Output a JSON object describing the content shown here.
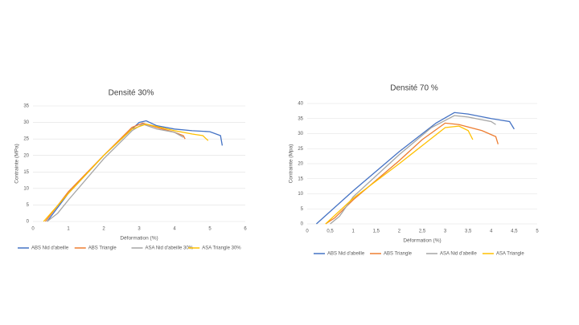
{
  "chart_data": [
    {
      "type": "line",
      "title": "Densité 30%",
      "x_label": "Déformation (%)",
      "y_label": "Contrainte (MPa)",
      "xlim": [
        0,
        6
      ],
      "xticks": [
        0,
        1,
        2,
        3,
        4,
        5,
        6
      ],
      "ylim": [
        0,
        35
      ],
      "yticks": [
        0,
        5,
        10,
        15,
        20,
        25,
        30,
        35
      ],
      "grid": true,
      "series": [
        {
          "name": "ABS Nid d'abeille",
          "color": "#4472c4",
          "x": [
            0.4,
            1,
            2,
            3,
            3.2,
            3.5,
            4,
            4.5,
            5,
            5.3,
            5.35
          ],
          "values": [
            0,
            8.5,
            20,
            30,
            30.5,
            29,
            28,
            27.5,
            27.2,
            26,
            23
          ]
        },
        {
          "name": "ABS Triangle",
          "color": "#ed7d31",
          "x": [
            0.35,
            1,
            2,
            2.8,
            3.1,
            3.5,
            4,
            4.25,
            4.3
          ],
          "values": [
            0,
            9,
            20,
            28.5,
            29.8,
            28.5,
            27,
            26,
            25
          ]
        },
        {
          "name": "ASA Nid d'abeille 30%",
          "color": "#a5a5a5",
          "x": [
            0.4,
            0.7,
            1,
            2,
            2.8,
            3.1,
            3.5,
            4,
            4.25
          ],
          "values": [
            0,
            2.5,
            6.5,
            19,
            27.5,
            29.5,
            28,
            27,
            25.5
          ]
        },
        {
          "name": "ASA Triangle 30%",
          "color": "#ffc000",
          "x": [
            0.3,
            1,
            2,
            2.8,
            3.2,
            3.6,
            4,
            4.5,
            4.8,
            4.95
          ],
          "values": [
            0,
            8.5,
            20,
            28,
            29.5,
            28.5,
            27.5,
            26.5,
            26,
            24.5
          ]
        }
      ]
    },
    {
      "type": "line",
      "title": "Densité 70 %",
      "x_label": "Déformation (%)",
      "y_label": "Contrainte (Mpa)",
      "xlim": [
        0,
        5
      ],
      "xticks": [
        0,
        {
          "value": 0.5,
          "label": "0,5"
        },
        1,
        {
          "value": 1.5,
          "label": "1,5"
        },
        2,
        {
          "value": 2.5,
          "label": "2,5"
        },
        3,
        {
          "value": 3.5,
          "label": "3,5"
        },
        4,
        {
          "value": 4.5,
          "label": "4,5"
        },
        5
      ],
      "ylim": [
        0,
        40
      ],
      "yticks": [
        0,
        5,
        10,
        15,
        20,
        25,
        30,
        35,
        40
      ],
      "grid": true,
      "series": [
        {
          "name": "ABS Nid d'abeille",
          "color": "#4472c4",
          "x": [
            0.2,
            1,
            2,
            2.8,
            3.2,
            3.5,
            4,
            4.4,
            4.5
          ],
          "values": [
            0,
            11,
            24,
            33.5,
            37,
            36.5,
            35,
            34,
            31.5
          ]
        },
        {
          "name": "ABS Triangle",
          "color": "#ed7d31",
          "x": [
            0.4,
            0.6,
            1,
            2,
            2.5,
            3,
            3.3,
            3.8,
            4.1,
            4.15
          ],
          "values": [
            0,
            2,
            8,
            21,
            28,
            33.5,
            33,
            31,
            29,
            26.5
          ]
        },
        {
          "name": "ASA Nid d'abeille",
          "color": "#a5a5a5",
          "x": [
            0.5,
            0.7,
            1,
            2,
            2.7,
            3.2,
            3.5,
            4,
            4.1
          ],
          "values": [
            0,
            2.5,
            9,
            23,
            32,
            36,
            35.5,
            34,
            33
          ]
        },
        {
          "name": "ASA Triangle",
          "color": "#ffc000",
          "x": [
            0.4,
            1,
            2,
            2.5,
            3,
            3.3,
            3.5,
            3.6
          ],
          "values": [
            0,
            8.5,
            20,
            26,
            32,
            32.5,
            31,
            28
          ]
        }
      ]
    }
  ]
}
